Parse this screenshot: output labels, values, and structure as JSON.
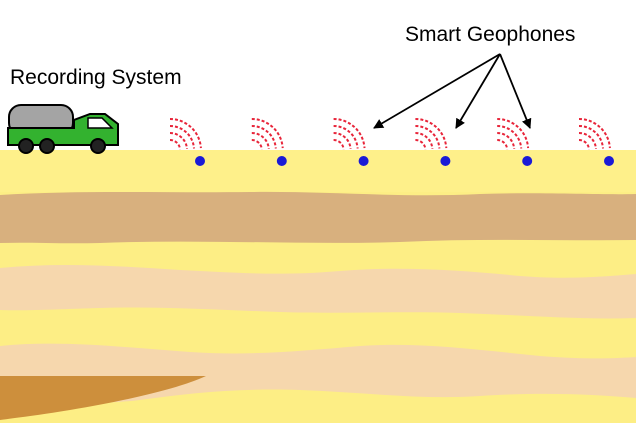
{
  "labels": {
    "recording_system": "Recording System",
    "smart_geophones": "Smart Geophones"
  },
  "geophones": {
    "count": 6,
    "arrow_targets": 3
  },
  "colors": {
    "sky": "#ffffff",
    "surface_band": "#fef08a",
    "light_yellow": "#fdee85",
    "tan_band": "#d8b07e",
    "peach_band": "#f6d7ad",
    "wedge_brown": "#cd8f3c",
    "geophone_dot": "#1a1ad6",
    "wave_red": "#e8253a",
    "truck_green": "#33b22f",
    "truck_tank": "#a4a4a4",
    "arrow": "#000000"
  },
  "icons": {
    "vehicle": "truck-icon",
    "sensor": "geophone-icon",
    "signal": "wave-signal-icon"
  }
}
